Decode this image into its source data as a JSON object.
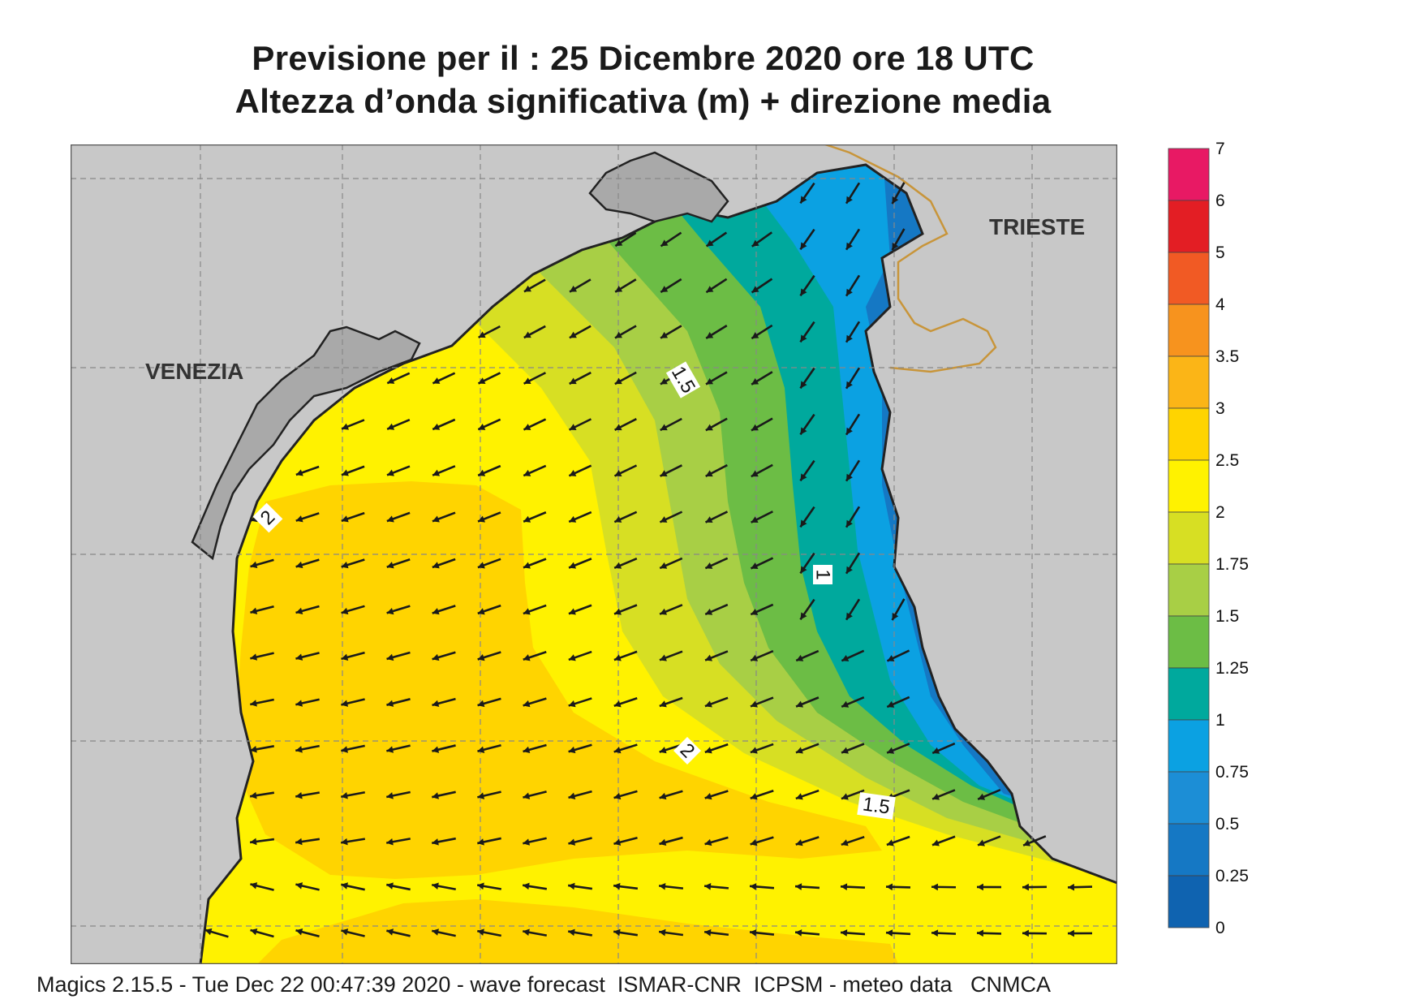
{
  "header": {
    "title_line1": "Previsione per il  :  25 Dicembre  2020   ore 18 UTC",
    "title_line2": "Altezza d’onda significativa (m) + direzione media"
  },
  "map": {
    "places": [
      "VENEZIA",
      "TRIESTE"
    ],
    "contour_labels": [
      "1.5",
      "2",
      "1",
      "2",
      "1.5"
    ],
    "land_color": "#c8c8c8",
    "border_color": "#c8953a"
  },
  "legend": {
    "levels": [
      {
        "label": "7",
        "color": null
      },
      {
        "label": "6",
        "color": "#e81964"
      },
      {
        "label": "5",
        "color": "#e31e24"
      },
      {
        "label": "4",
        "color": "#f15a24"
      },
      {
        "label": "3.5",
        "color": "#f7931e"
      },
      {
        "label": "3",
        "color": "#fbb517"
      },
      {
        "label": "2.5",
        "color": "#ffd400"
      },
      {
        "label": "2",
        "color": "#fff200"
      },
      {
        "label": "1.75",
        "color": "#d7df23"
      },
      {
        "label": "1.5",
        "color": "#a8cf45"
      },
      {
        "label": "1.25",
        "color": "#6cbd45"
      },
      {
        "label": "1",
        "color": "#00a99d"
      },
      {
        "label": "0.75",
        "color": "#0ba1e2"
      },
      {
        "label": "0.5",
        "color": "#1c8ed6"
      },
      {
        "label": "0.25",
        "color": "#1578c4"
      },
      {
        "label": "0",
        "color": "#0f63b0"
      }
    ]
  },
  "footer": {
    "text": "Magics 2.15.5 - Tue Dec 22 00:47:39 2020 - wave forecast  ISMAR-CNR  ICPSM - meteo data   CNMCA"
  }
}
